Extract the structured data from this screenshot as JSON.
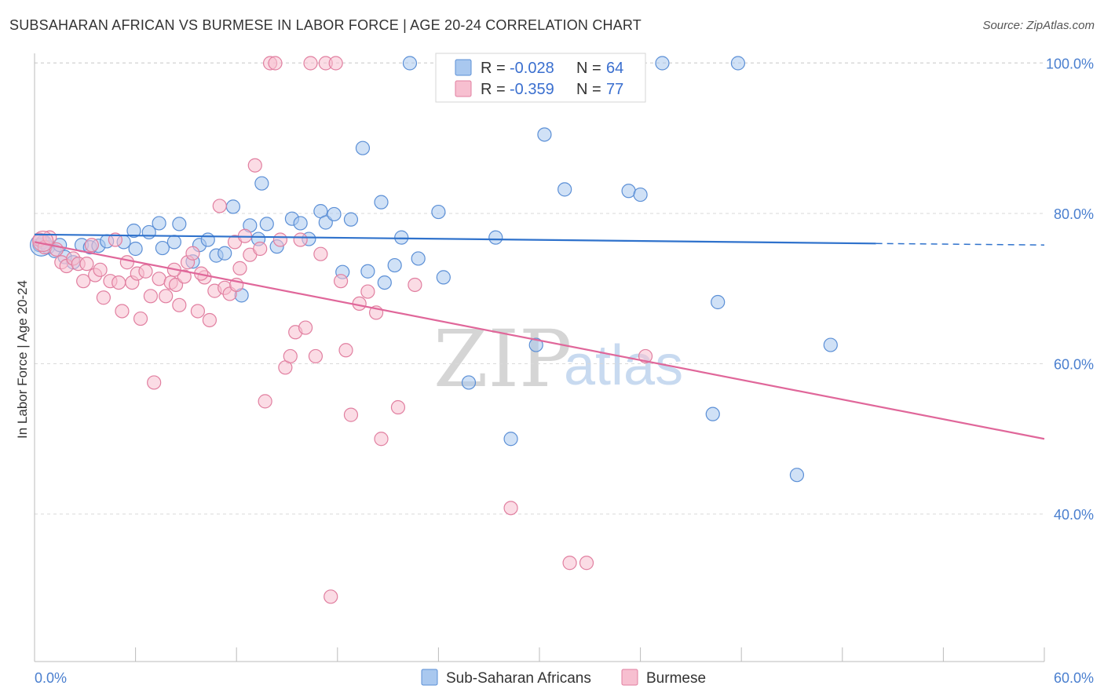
{
  "title": "SUBSAHARAN AFRICAN VS BURMESE IN LABOR FORCE | AGE 20-24 CORRELATION CHART",
  "source": "Source: ZipAtlas.com",
  "watermark": {
    "zip": "ZIP",
    "atlas": "atlas"
  },
  "colors": {
    "blue_fill": "#a9c8ef",
    "blue_stroke": "#5b8fd6",
    "blue_line": "#2f72cc",
    "pink_fill": "#f7bfd0",
    "pink_stroke": "#e17fa0",
    "pink_line": "#e0679a",
    "grid": "#d9d9d9",
    "axis": "#bbbbbb",
    "tick_text": "#4a7fcf"
  },
  "legend": {
    "rows": [
      {
        "r_label": "R = ",
        "r_value": "-0.028",
        "n_label": "N = ",
        "n_value": "64",
        "series": "blue"
      },
      {
        "r_label": "R = ",
        "r_value": "-0.359",
        "n_label": "N = ",
        "n_value": "77",
        "series": "pink"
      }
    ]
  },
  "chart_data": {
    "type": "scatter",
    "title": "SUBSAHARAN AFRICAN VS BURMESE IN LABOR FORCE | AGE 20-24 CORRELATION CHART",
    "xlabel": "",
    "ylabel": "In Labor Force | Age 20-24",
    "xlim": [
      0,
      60
    ],
    "ylim": [
      20,
      102
    ],
    "x_tick_labels": [
      {
        "value": 0,
        "label": "0.0%"
      },
      {
        "value": 60,
        "label": "60.0%"
      }
    ],
    "y_tick_labels": [
      {
        "value": 100,
        "label": "100.0%"
      },
      {
        "value": 80,
        "label": "80.0%"
      },
      {
        "value": 60,
        "label": "60.0%"
      },
      {
        "value": 40,
        "label": "40.0%"
      }
    ],
    "grid": true,
    "legend_position": "top-center",
    "series": [
      {
        "name": "Sub-Saharan Africans",
        "color": "blue",
        "R": -0.028,
        "N": 64,
        "trend": {
          "x0": 0,
          "y0": 77.2,
          "x1": 50,
          "y1": 76.0,
          "dashed_to_x": 60,
          "dashed_to_y": 75.8
        },
        "points": [
          [
            0.3,
            75.8
          ],
          [
            0.5,
            76.2
          ],
          [
            0.8,
            75.5
          ],
          [
            1.2,
            75.0
          ],
          [
            1.5,
            75.8
          ],
          [
            1.8,
            74.2
          ],
          [
            2.3,
            73.5
          ],
          [
            2.8,
            75.8
          ],
          [
            3.3,
            75.5
          ],
          [
            3.8,
            75.7
          ],
          [
            4.3,
            76.3
          ],
          [
            5.3,
            76.2
          ],
          [
            6.0,
            75.3
          ],
          [
            5.9,
            77.7
          ],
          [
            6.8,
            77.5
          ],
          [
            7.4,
            78.7
          ],
          [
            7.6,
            75.4
          ],
          [
            8.3,
            76.2
          ],
          [
            8.6,
            78.6
          ],
          [
            9.4,
            73.6
          ],
          [
            9.8,
            75.8
          ],
          [
            10.3,
            76.5
          ],
          [
            10.8,
            74.4
          ],
          [
            11.3,
            74.7
          ],
          [
            11.8,
            80.9
          ],
          [
            12.3,
            69.1
          ],
          [
            12.8,
            78.4
          ],
          [
            13.3,
            76.6
          ],
          [
            13.5,
            84.0
          ],
          [
            13.8,
            78.6
          ],
          [
            14.4,
            75.6
          ],
          [
            15.3,
            79.3
          ],
          [
            15.8,
            78.7
          ],
          [
            16.3,
            76.6
          ],
          [
            17.0,
            80.3
          ],
          [
            17.3,
            78.8
          ],
          [
            17.8,
            79.9
          ],
          [
            18.3,
            72.2
          ],
          [
            18.8,
            79.2
          ],
          [
            19.5,
            88.7
          ],
          [
            19.8,
            72.3
          ],
          [
            20.6,
            81.5
          ],
          [
            20.8,
            70.8
          ],
          [
            21.4,
            73.1
          ],
          [
            21.8,
            76.8
          ],
          [
            22.3,
            100.0
          ],
          [
            22.8,
            74.0
          ],
          [
            24.0,
            80.2
          ],
          [
            24.3,
            71.5
          ],
          [
            25.8,
            57.5
          ],
          [
            27.4,
            76.8
          ],
          [
            27.8,
            100.0
          ],
          [
            28.3,
            50.0
          ],
          [
            29.8,
            62.5
          ],
          [
            30.3,
            90.5
          ],
          [
            31.5,
            83.2
          ],
          [
            35.3,
            83.0
          ],
          [
            36.0,
            82.5
          ],
          [
            37.3,
            100.0
          ],
          [
            40.3,
            53.3
          ],
          [
            40.6,
            68.2
          ],
          [
            41.8,
            100.0
          ],
          [
            45.3,
            45.2
          ],
          [
            47.3,
            62.5
          ]
        ]
      },
      {
        "name": "Burmese",
        "color": "pink",
        "R": -0.359,
        "N": 77,
        "trend": {
          "x0": 0,
          "y0": 76.2,
          "x1": 60,
          "y1": 50.0
        },
        "points": [
          [
            0.3,
            76.5
          ],
          [
            0.6,
            75.5
          ],
          [
            0.9,
            76.8
          ],
          [
            1.3,
            75.2
          ],
          [
            1.6,
            73.5
          ],
          [
            1.9,
            73.0
          ],
          [
            2.3,
            74.0
          ],
          [
            2.6,
            73.3
          ],
          [
            2.9,
            71.0
          ],
          [
            3.1,
            73.3
          ],
          [
            3.4,
            75.8
          ],
          [
            3.6,
            71.8
          ],
          [
            3.9,
            72.5
          ],
          [
            4.1,
            68.8
          ],
          [
            4.5,
            71.0
          ],
          [
            4.8,
            76.5
          ],
          [
            5.0,
            70.8
          ],
          [
            5.2,
            67.0
          ],
          [
            5.5,
            73.5
          ],
          [
            5.8,
            70.8
          ],
          [
            6.1,
            72.0
          ],
          [
            6.3,
            66.0
          ],
          [
            6.6,
            72.3
          ],
          [
            6.9,
            69.0
          ],
          [
            7.1,
            57.5
          ],
          [
            7.4,
            71.3
          ],
          [
            7.8,
            69.0
          ],
          [
            8.1,
            70.8
          ],
          [
            8.4,
            70.5
          ],
          [
            8.6,
            67.8
          ],
          [
            8.9,
            71.6
          ],
          [
            9.1,
            73.5
          ],
          [
            9.4,
            74.7
          ],
          [
            9.7,
            67.0
          ],
          [
            10.1,
            71.5
          ],
          [
            10.4,
            65.8
          ],
          [
            10.7,
            69.7
          ],
          [
            11.0,
            81.0
          ],
          [
            11.3,
            70.1
          ],
          [
            11.6,
            69.3
          ],
          [
            11.9,
            76.2
          ],
          [
            12.2,
            72.7
          ],
          [
            12.5,
            77.0
          ],
          [
            12.8,
            74.5
          ],
          [
            13.1,
            86.4
          ],
          [
            13.4,
            75.3
          ],
          [
            13.7,
            55.0
          ],
          [
            14.0,
            100.0
          ],
          [
            14.3,
            100.0
          ],
          [
            14.6,
            76.5
          ],
          [
            14.9,
            59.5
          ],
          [
            15.2,
            61.0
          ],
          [
            15.5,
            64.2
          ],
          [
            15.8,
            76.5
          ],
          [
            16.1,
            64.8
          ],
          [
            16.4,
            100.0
          ],
          [
            16.7,
            61.0
          ],
          [
            17.0,
            74.6
          ],
          [
            17.3,
            100.0
          ],
          [
            17.6,
            29.0
          ],
          [
            18.2,
            71.0
          ],
          [
            18.5,
            61.8
          ],
          [
            18.8,
            53.2
          ],
          [
            19.3,
            68.0
          ],
          [
            19.8,
            69.6
          ],
          [
            20.3,
            66.8
          ],
          [
            20.6,
            50.0
          ],
          [
            21.6,
            54.2
          ],
          [
            22.6,
            70.5
          ],
          [
            28.3,
            40.8
          ],
          [
            31.8,
            33.5
          ],
          [
            32.8,
            33.5
          ],
          [
            36.3,
            61.0
          ],
          [
            17.9,
            100.0
          ],
          [
            12.0,
            70.5
          ],
          [
            9.9,
            72.0
          ],
          [
            8.3,
            72.5
          ]
        ]
      }
    ]
  },
  "bottom_legend": [
    {
      "label": "Sub-Saharan Africans",
      "color": "blue"
    },
    {
      "label": "Burmese",
      "color": "pink"
    }
  ]
}
